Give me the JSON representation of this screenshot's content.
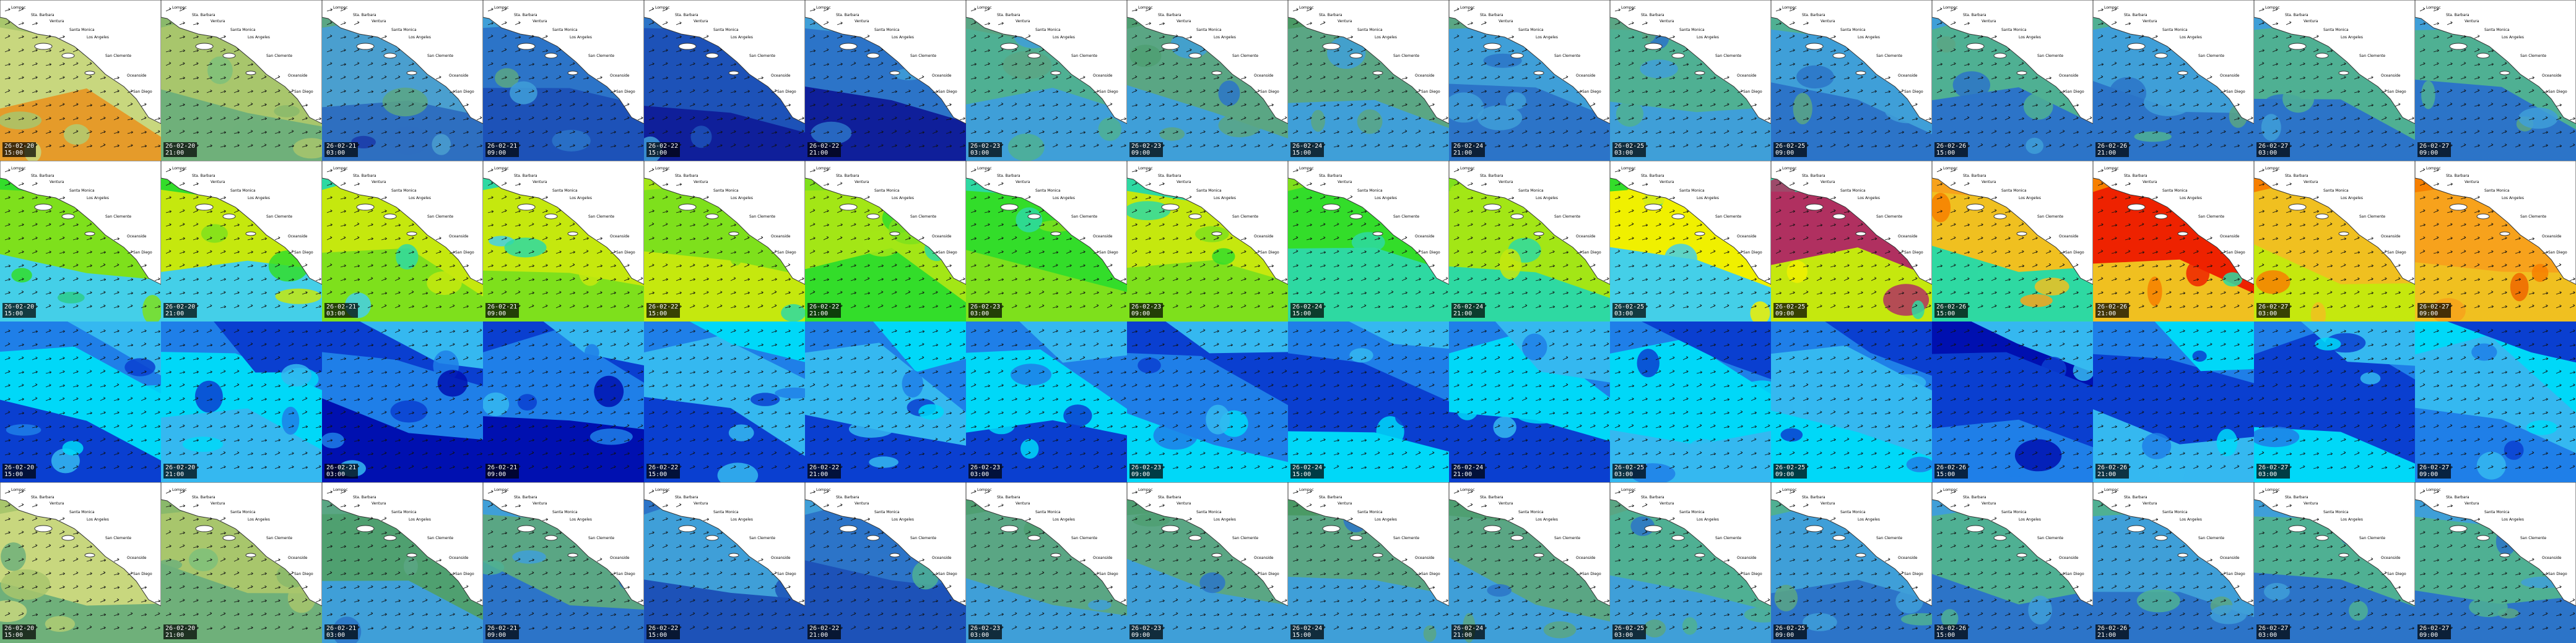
{
  "map_grid": {
    "rows": [
      {
        "name": "row-1",
        "has_coast": true,
        "tiles": [
          {
            "date": "26-02-20",
            "time": "15:00",
            "palette": [
              "#a8c66c",
              "#c8d77e",
              "#e59b2a",
              "#b0cd73"
            ]
          },
          {
            "date": "26-02-20",
            "time": "21:00",
            "palette": [
              "#8ab96b",
              "#a8c66c",
              "#6fb07a",
              "#7ec07a"
            ]
          },
          {
            "date": "26-02-21",
            "time": "03:00",
            "palette": [
              "#5aa684",
              "#4a9fcf",
              "#2e6fc0",
              "#1a3aa8"
            ]
          },
          {
            "date": "26-02-21",
            "time": "09:00",
            "palette": [
              "#3f9fd8",
              "#2c74c8",
              "#1d52b8",
              "#5aa684"
            ]
          },
          {
            "date": "26-02-22",
            "time": "15:00",
            "palette": [
              "#2c74c8",
              "#1d52b8",
              "#0f1f9a",
              "#3f9fd8"
            ]
          },
          {
            "date": "26-02-22",
            "time": "21:00",
            "palette": [
              "#3f9fd8",
              "#2c74c8",
              "#0f1f9a",
              "#1d52b8"
            ]
          },
          {
            "date": "26-02-23",
            "time": "03:00",
            "palette": [
              "#5aa684",
              "#4fb093",
              "#3f9fd8",
              "#2c74c8"
            ]
          },
          {
            "date": "26-02-23",
            "time": "09:00",
            "palette": [
              "#4f9f72",
              "#5aa684",
              "#3f9fd8",
              "#2c74c8"
            ]
          },
          {
            "date": "26-02-24",
            "time": "15:00",
            "palette": [
              "#4a9a65",
              "#5aa684",
              "#3f9fd8",
              "#2c74c8"
            ]
          },
          {
            "date": "26-02-24",
            "time": "21:00",
            "palette": [
              "#5aa684",
              "#3f9fd8",
              "#2c74c8",
              "#3f9fd8"
            ]
          },
          {
            "date": "26-02-25",
            "time": "03:00",
            "palette": [
              "#5aa684",
              "#4fb093",
              "#3f9fd8",
              "#2c74c8"
            ]
          },
          {
            "date": "26-02-25",
            "time": "09:00",
            "palette": [
              "#4fb093",
              "#3f9fd8",
              "#2c74c8",
              "#5aa684"
            ]
          },
          {
            "date": "26-02-26",
            "time": "15:00",
            "palette": [
              "#3f9fd8",
              "#4fb093",
              "#2c74c8",
              "#5aa684"
            ]
          },
          {
            "date": "26-02-26",
            "time": "21:00",
            "palette": [
              "#4fb093",
              "#3f9fd8",
              "#2c74c8",
              "#5aa684"
            ]
          },
          {
            "date": "26-02-27",
            "time": "03:00",
            "palette": [
              "#3f9fd8",
              "#4fb093",
              "#2c74c8",
              "#1d52b8"
            ]
          },
          {
            "date": "26-02-27",
            "time": "09:00",
            "palette": [
              "#3f9fd8",
              "#4fb093",
              "#2c74c8",
              "#5aa684"
            ]
          }
        ]
      },
      {
        "name": "row-2",
        "has_coast": true,
        "tiles": [
          {
            "date": "26-02-20",
            "time": "15:00",
            "palette": [
              "#33dd2a",
              "#7ee01c",
              "#44cfe8",
              "#2dcc8a"
            ]
          },
          {
            "date": "26-02-20",
            "time": "21:00",
            "palette": [
              "#33dd2a",
              "#c5e80e",
              "#44cfe8",
              "#7ee01c"
            ]
          },
          {
            "date": "26-02-21",
            "time": "03:00",
            "palette": [
              "#2ed9a2",
              "#c5e80e",
              "#7ee01c",
              "#44cfe8"
            ]
          },
          {
            "date": "26-02-21",
            "time": "09:00",
            "palette": [
              "#2ed9a2",
              "#c5e80e",
              "#7ee01c",
              "#44cfe8"
            ]
          },
          {
            "date": "26-02-22",
            "time": "15:00",
            "palette": [
              "#a3e616",
              "#7ee01c",
              "#c5e80e",
              "#2ed9a2"
            ]
          },
          {
            "date": "26-02-22",
            "time": "21:00",
            "palette": [
              "#7ee01c",
              "#a3e616",
              "#33dd2a",
              "#2ed9a2"
            ]
          },
          {
            "date": "26-02-23",
            "time": "03:00",
            "palette": [
              "#2ed9a2",
              "#33dd2a",
              "#7ee01c",
              "#2dcc8a"
            ]
          },
          {
            "date": "26-02-23",
            "time": "09:00",
            "palette": [
              "#2ed9a2",
              "#c5e80e",
              "#7ee01c",
              "#33dd2a"
            ]
          },
          {
            "date": "26-02-24",
            "time": "15:00",
            "palette": [
              "#7ee01c",
              "#33dd2a",
              "#2ed9a2",
              "#c5e80e"
            ]
          },
          {
            "date": "26-02-24",
            "time": "21:00",
            "palette": [
              "#7ee01c",
              "#a3e616",
              "#2ed9a2",
              "#c5e80e"
            ]
          },
          {
            "date": "26-02-25",
            "time": "03:00",
            "palette": [
              "#33dd2a",
              "#f0f000",
              "#44cfe8",
              "#2ed9a2"
            ]
          },
          {
            "date": "26-02-25",
            "time": "09:00",
            "palette": [
              "#2ed9a2",
              "#b03060",
              "#c5e80e",
              "#f0f000"
            ]
          },
          {
            "date": "26-02-26",
            "time": "15:00",
            "palette": [
              "#f7a21c",
              "#f0c020",
              "#2ed9a2",
              "#f77f00"
            ]
          },
          {
            "date": "26-02-26",
            "time": "21:00",
            "palette": [
              "#f77f00",
              "#ee2200",
              "#f0c020",
              "#2ed9a2"
            ]
          },
          {
            "date": "26-02-27",
            "time": "03:00",
            "palette": [
              "#f77f00",
              "#f0c020",
              "#c5e80e",
              "#f7a21c"
            ]
          },
          {
            "date": "26-02-27",
            "time": "09:00",
            "palette": [
              "#f77f00",
              "#f7a21c",
              "#f0c020",
              "#ee6600"
            ]
          }
        ]
      },
      {
        "name": "row-3",
        "has_coast": false,
        "tiles": [
          {
            "date": "26-02-20",
            "time": "15:00",
            "palette": [
              "#1f7fe8",
              "#00d8f8",
              "#0a3fd0",
              "#35b8f0"
            ]
          },
          {
            "date": "26-02-20",
            "time": "21:00",
            "palette": [
              "#1f7fe8",
              "#00d8f8",
              "#35b8f0",
              "#0a3fd0"
            ]
          },
          {
            "date": "26-02-21",
            "time": "03:00",
            "palette": [
              "#0a3fd0",
              "#1f7fe8",
              "#0010b0",
              "#35b8f0"
            ]
          },
          {
            "date": "26-02-21",
            "time": "09:00",
            "palette": [
              "#0a3fd0",
              "#1f7fe8",
              "#0010b0",
              "#35b8f0"
            ]
          },
          {
            "date": "26-02-22",
            "time": "15:00",
            "palette": [
              "#1f7fe8",
              "#35b8f0",
              "#0a3fd0",
              "#00d8f8"
            ]
          },
          {
            "date": "26-02-22",
            "time": "21:00",
            "palette": [
              "#1f7fe8",
              "#35b8f0",
              "#0a3fd0",
              "#00d8f8"
            ]
          },
          {
            "date": "26-02-23",
            "time": "03:00",
            "palette": [
              "#1f7fe8",
              "#00d8f8",
              "#0a3fd0",
              "#35b8f0"
            ]
          },
          {
            "date": "26-02-23",
            "time": "09:00",
            "palette": [
              "#0a3fd0",
              "#1f7fe8",
              "#00d8f8",
              "#35b8f0"
            ]
          },
          {
            "date": "26-02-24",
            "time": "15:00",
            "palette": [
              "#1f7fe8",
              "#0a3fd0",
              "#00d8f8",
              "#35b8f0"
            ]
          },
          {
            "date": "26-02-24",
            "time": "21:00",
            "palette": [
              "#1f7fe8",
              "#00d8f8",
              "#0a3fd0",
              "#35b8f0"
            ]
          },
          {
            "date": "26-02-25",
            "time": "03:00",
            "palette": [
              "#1f7fe8",
              "#00d8f8",
              "#35b8f0",
              "#0a3fd0"
            ]
          },
          {
            "date": "26-02-25",
            "time": "09:00",
            "palette": [
              "#1f7fe8",
              "#35b8f0",
              "#00d8f8",
              "#0a3fd0"
            ]
          },
          {
            "date": "26-02-26",
            "time": "15:00",
            "palette": [
              "#0010b0",
              "#0a3fd0",
              "#1f7fe8",
              "#35b8f0"
            ]
          },
          {
            "date": "26-02-26",
            "time": "21:00",
            "palette": [
              "#1f7fe8",
              "#0a3fd0",
              "#35b8f0",
              "#00d8f8"
            ]
          },
          {
            "date": "26-02-27",
            "time": "03:00",
            "palette": [
              "#1f7fe8",
              "#0a3fd0",
              "#00d8f8",
              "#35b8f0"
            ]
          },
          {
            "date": "26-02-27",
            "time": "09:00",
            "palette": [
              "#00d8f8",
              "#35b8f0",
              "#1f7fe8",
              "#0a3fd0"
            ]
          }
        ]
      },
      {
        "name": "row-4",
        "has_coast": true,
        "tiles": [
          {
            "date": "26-02-20",
            "time": "15:00",
            "palette": [
              "#a8c66c",
              "#c8d77e",
              "#6fb07a",
              "#b0cd73"
            ]
          },
          {
            "date": "26-02-20",
            "time": "21:00",
            "palette": [
              "#8ab96b",
              "#a8c66c",
              "#6fb07a",
              "#7ec07a"
            ]
          },
          {
            "date": "26-02-21",
            "time": "03:00",
            "palette": [
              "#5aa684",
              "#4fa070",
              "#3f9fd8",
              "#2c74c8"
            ]
          },
          {
            "date": "26-02-21",
            "time": "09:00",
            "palette": [
              "#3f9fd8",
              "#5aa684",
              "#2c74c8",
              "#4fb093"
            ]
          },
          {
            "date": "26-02-22",
            "time": "15:00",
            "palette": [
              "#2c74c8",
              "#3f9fd8",
              "#1d52b8",
              "#4fb093"
            ]
          },
          {
            "date": "26-02-22",
            "time": "21:00",
            "palette": [
              "#3f9fd8",
              "#2c74c8",
              "#1d52b8",
              "#4fb093"
            ]
          },
          {
            "date": "26-02-23",
            "time": "03:00",
            "palette": [
              "#4f9f72",
              "#5aa684",
              "#3f9fd8",
              "#2c74c8"
            ]
          },
          {
            "date": "26-02-23",
            "time": "09:00",
            "palette": [
              "#4f9f72",
              "#5aa684",
              "#3f9fd8",
              "#2c74c8"
            ]
          },
          {
            "date": "26-02-24",
            "time": "15:00",
            "palette": [
              "#4a9a65",
              "#5aa684",
              "#3f9fd8",
              "#2c74c8"
            ]
          },
          {
            "date": "26-02-24",
            "time": "21:00",
            "palette": [
              "#4f9f72",
              "#5aa684",
              "#3f9fd8",
              "#2c74c8"
            ]
          },
          {
            "date": "26-02-25",
            "time": "03:00",
            "palette": [
              "#5aa684",
              "#4fb093",
              "#3f9fd8",
              "#2c74c8"
            ]
          },
          {
            "date": "26-02-25",
            "time": "09:00",
            "palette": [
              "#4fb093",
              "#3f9fd8",
              "#2c74c8",
              "#5aa684"
            ]
          },
          {
            "date": "26-02-26",
            "time": "15:00",
            "palette": [
              "#3f9fd8",
              "#4fb093",
              "#2c74c8",
              "#5aa684"
            ]
          },
          {
            "date": "26-02-26",
            "time": "21:00",
            "palette": [
              "#4fb093",
              "#3f9fd8",
              "#2c74c8",
              "#5aa684"
            ]
          },
          {
            "date": "26-02-27",
            "time": "03:00",
            "palette": [
              "#3f9fd8",
              "#4fb093",
              "#2c74c8",
              "#1d52b8"
            ]
          },
          {
            "date": "26-02-27",
            "time": "09:00",
            "palette": [
              "#3f9fd8",
              "#4fb093",
              "#2c74c8",
              "#5aa684"
            ]
          }
        ]
      }
    ],
    "place_labels": [
      "Lompoc",
      "Sta. Barbara",
      "Ventura",
      "Santa Monica",
      "Los Angeles",
      "San Clemente",
      "Oceanside",
      "San Diego"
    ],
    "land_color": "#ffffff",
    "coast_color": "#333333",
    "arrow_color": "#111111"
  }
}
